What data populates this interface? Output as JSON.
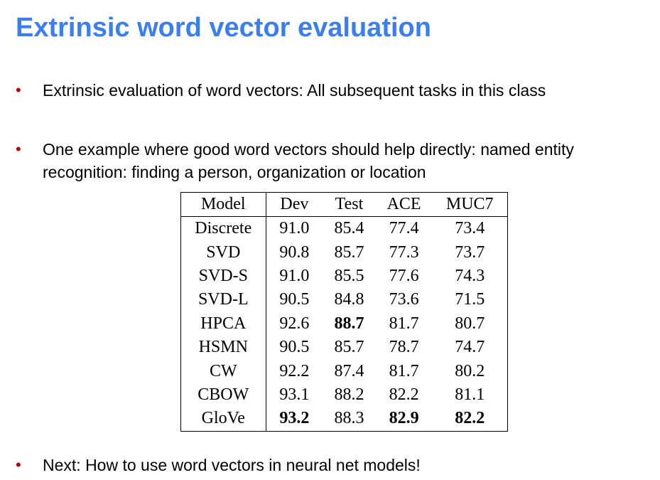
{
  "slide": {
    "title": "Extrinsic word vector evaluation",
    "bullet_color": "#c00000",
    "title_color": "#3a7ff0",
    "bullets": [
      {
        "text": "Extrinsic evaluation of word vectors: All subsequent tasks in this class"
      },
      {
        "text": "One example where good word vectors should help directly: named entity recognition: finding a person, organization or location"
      },
      {
        "text": "Next: How to use word vectors in neural net models!"
      }
    ]
  },
  "table": {
    "headers": [
      "Model",
      "Dev",
      "Test",
      "ACE",
      "MUC7"
    ],
    "rows": [
      {
        "model": "Discrete",
        "dev": "91.0",
        "test": "85.4",
        "ace": "77.4",
        "muc7": "73.4"
      },
      {
        "model": "SVD",
        "dev": "90.8",
        "test": "85.7",
        "ace": "77.3",
        "muc7": "73.7"
      },
      {
        "model": "SVD-S",
        "dev": "91.0",
        "test": "85.5",
        "ace": "77.6",
        "muc7": "74.3"
      },
      {
        "model": "SVD-L",
        "dev": "90.5",
        "test": "84.8",
        "ace": "73.6",
        "muc7": "71.5"
      },
      {
        "model": "HPCA",
        "dev": "92.6",
        "test": "88.7",
        "ace": "81.7",
        "muc7": "80.7"
      },
      {
        "model": "HSMN",
        "dev": "90.5",
        "test": "85.7",
        "ace": "78.7",
        "muc7": "74.7"
      },
      {
        "model": "CW",
        "dev": "92.2",
        "test": "87.4",
        "ace": "81.7",
        "muc7": "80.2"
      },
      {
        "model": "CBOW",
        "dev": "93.1",
        "test": "88.2",
        "ace": "82.2",
        "muc7": "81.1"
      },
      {
        "model": "GloVe",
        "dev": "93.2",
        "test": "88.3",
        "ace": "82.9",
        "muc7": "82.2"
      }
    ],
    "bold_cells": [
      "HPCA.test",
      "GloVe.dev",
      "GloVe.ace",
      "GloVe.muc7"
    ]
  }
}
